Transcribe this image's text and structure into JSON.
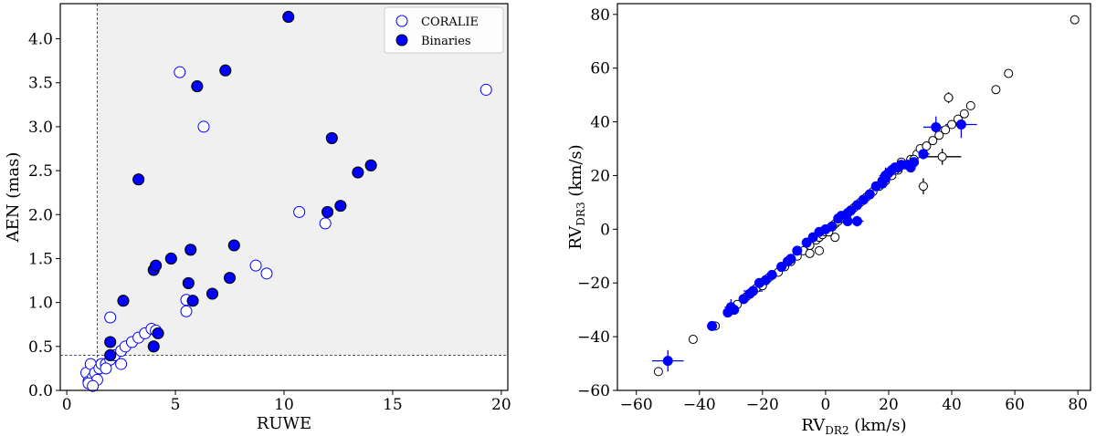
{
  "chart_data": [
    {
      "type": "scatter",
      "title": "",
      "xlabel": "RUWE",
      "ylabel": "AEN (mas)",
      "xlim": [
        -0.3,
        20.3
      ],
      "ylim": [
        0,
        4.4
      ],
      "xticks": [
        0,
        5,
        10,
        15,
        20
      ],
      "yticks": [
        0.0,
        0.5,
        1.0,
        1.5,
        2.0,
        2.5,
        3.0,
        3.5,
        4.0
      ],
      "shaded_region": {
        "x_min": 1.4,
        "y_min": 0.4,
        "color": "#f0f0f0"
      },
      "threshold_lines": {
        "x": 1.4,
        "y": 0.4
      },
      "legend_position": "top-right",
      "series": [
        {
          "name": "CORALIE",
          "marker": "open-circle",
          "color": "#0000ff",
          "points": [
            [
              0.9,
              0.2
            ],
            [
              1.0,
              0.1
            ],
            [
              1.1,
              0.3
            ],
            [
              1.2,
              0.15
            ],
            [
              1.3,
              0.2
            ],
            [
              1.4,
              0.12
            ],
            [
              1.5,
              0.25
            ],
            [
              1.6,
              0.3
            ],
            [
              1.0,
              0.08
            ],
            [
              1.2,
              0.05
            ],
            [
              1.8,
              0.3
            ],
            [
              2.0,
              0.35
            ],
            [
              2.2,
              0.4
            ],
            [
              2.5,
              0.45
            ],
            [
              2.7,
              0.5
            ],
            [
              3.0,
              0.55
            ],
            [
              3.3,
              0.6
            ],
            [
              3.6,
              0.65
            ],
            [
              3.9,
              0.7
            ],
            [
              4.1,
              0.68
            ],
            [
              2.0,
              0.83
            ],
            [
              2.5,
              0.3
            ],
            [
              1.8,
              0.25
            ],
            [
              5.2,
              3.62
            ],
            [
              6.3,
              3.0
            ],
            [
              5.5,
              1.03
            ],
            [
              5.5,
              0.9
            ],
            [
              8.7,
              1.42
            ],
            [
              9.2,
              1.33
            ],
            [
              10.7,
              2.03
            ],
            [
              11.9,
              1.9
            ],
            [
              19.3,
              3.42
            ]
          ]
        },
        {
          "name": "Binaries",
          "marker": "filled-circle",
          "color": "#0000ff",
          "points": [
            [
              2.0,
              0.55
            ],
            [
              2.0,
              0.4
            ],
            [
              2.6,
              1.02
            ],
            [
              3.3,
              2.4
            ],
            [
              4.0,
              1.37
            ],
            [
              4.1,
              1.42
            ],
            [
              4.0,
              0.5
            ],
            [
              4.2,
              0.65
            ],
            [
              4.8,
              1.5
            ],
            [
              5.6,
              1.22
            ],
            [
              5.7,
              1.6
            ],
            [
              5.8,
              1.02
            ],
            [
              6.0,
              3.46
            ],
            [
              6.7,
              1.1
            ],
            [
              7.3,
              3.64
            ],
            [
              7.5,
              1.28
            ],
            [
              7.7,
              1.65
            ],
            [
              10.2,
              4.25
            ],
            [
              12.0,
              2.03
            ],
            [
              12.2,
              2.87
            ],
            [
              12.6,
              2.1
            ],
            [
              13.4,
              2.48
            ],
            [
              14.0,
              2.56
            ]
          ]
        }
      ]
    },
    {
      "type": "scatter",
      "title": "",
      "xlabel_main": "RV",
      "xlabel_sub": "DR2",
      "xlabel_unit": " (km/s)",
      "ylabel_main": "RV",
      "ylabel_sub": "DR3",
      "ylabel_unit": " (km/s)",
      "xlim": [
        -66,
        84
      ],
      "ylim": [
        -60,
        84
      ],
      "xticks": [
        -60,
        -40,
        -20,
        0,
        20,
        40,
        60,
        80
      ],
      "yticks": [
        -60,
        -40,
        -20,
        0,
        20,
        40,
        60,
        80
      ],
      "series": [
        {
          "name": "",
          "marker": "open-circle",
          "color": "#000000",
          "points": [
            [
              -53,
              -53
            ],
            [
              -42,
              -41
            ],
            [
              -35,
              -36
            ],
            [
              -31,
              -31
            ],
            [
              -28,
              -28
            ],
            [
              -25,
              -25
            ],
            [
              -22,
              -22
            ],
            [
              -20,
              -21
            ],
            [
              -18,
              -18
            ],
            [
              -15,
              -16
            ],
            [
              -13,
              -14
            ],
            [
              -11,
              -12
            ],
            [
              -9,
              -10
            ],
            [
              -7,
              -8
            ],
            [
              -5,
              -6
            ],
            [
              -3,
              -4
            ],
            [
              -2,
              -3
            ],
            [
              -1,
              -2
            ],
            [
              0,
              -1
            ],
            [
              1,
              0
            ],
            [
              2,
              1
            ],
            [
              3,
              2
            ],
            [
              4,
              3
            ],
            [
              5,
              4
            ],
            [
              6,
              5
            ],
            [
              7,
              6
            ],
            [
              8,
              7
            ],
            [
              9,
              8
            ],
            [
              10,
              9
            ],
            [
              11,
              10
            ],
            [
              12,
              11
            ],
            [
              13,
              12
            ],
            [
              14,
              13
            ],
            [
              15,
              14
            ],
            [
              17,
              16
            ],
            [
              19,
              18
            ],
            [
              21,
              20
            ],
            [
              23,
              22
            ],
            [
              25,
              24
            ],
            [
              27,
              26
            ],
            [
              29,
              28
            ],
            [
              30,
              30
            ],
            [
              32,
              31
            ],
            [
              34,
              33
            ],
            [
              36,
              35
            ],
            [
              38,
              37
            ],
            [
              40,
              39
            ],
            [
              42,
              41
            ],
            [
              44,
              43
            ],
            [
              46,
              46
            ],
            [
              54,
              52
            ],
            [
              58,
              58
            ],
            [
              79,
              78
            ],
            [
              -2,
              -8
            ],
            [
              -5,
              -9
            ],
            [
              1,
              -1
            ],
            [
              3,
              -3
            ],
            [
              22,
              22
            ],
            [
              24,
              25
            ],
            [
              28,
              26
            ]
          ],
          "error_points": [
            {
              "x": 31,
              "y": 16,
              "xerr": 1.5,
              "yerr": 3
            },
            {
              "x": 37,
              "y": 27,
              "xerr": 6,
              "yerr": 3
            },
            {
              "x": 39,
              "y": 49,
              "xerr": 1.5,
              "yerr": 2
            }
          ]
        },
        {
          "name": "",
          "marker": "filled-circle",
          "color": "#0000ff",
          "points": [
            [
              -36,
              -36
            ],
            [
              -31,
              -31
            ],
            [
              -29,
              -30
            ],
            [
              -26,
              -26
            ],
            [
              -24,
              -24
            ],
            [
              -21,
              -20
            ],
            [
              -19,
              -19
            ],
            [
              -17,
              -17
            ],
            [
              -14,
              -14
            ],
            [
              -12,
              -12
            ],
            [
              -9,
              -8
            ],
            [
              -6,
              -5
            ],
            [
              -4,
              -3
            ],
            [
              -2,
              -1
            ],
            [
              0,
              0
            ],
            [
              2,
              1
            ],
            [
              4,
              4
            ],
            [
              5,
              5
            ],
            [
              7,
              6
            ],
            [
              8,
              7
            ],
            [
              10,
              9
            ],
            [
              12,
              11
            ],
            [
              14,
              13
            ],
            [
              16,
              16
            ],
            [
              18,
              18
            ],
            [
              19,
              19
            ],
            [
              20,
              21
            ],
            [
              21,
              22
            ],
            [
              22,
              23
            ],
            [
              23,
              23
            ],
            [
              24,
              24
            ],
            [
              26,
              24
            ],
            [
              27,
              23
            ],
            [
              28,
              25
            ]
          ],
          "error_points": [
            {
              "x": -50,
              "y": -49,
              "xerr": 5,
              "yerr": 4
            },
            {
              "x": -30,
              "y": -29,
              "xerr": 2,
              "yerr": 3
            },
            {
              "x": -23,
              "y": -23,
              "xerr": 3,
              "yerr": 2
            },
            {
              "x": -11,
              "y": -11,
              "xerr": 2,
              "yerr": 1.5
            },
            {
              "x": 7,
              "y": 3,
              "xerr": 5,
              "yerr": 1.5
            },
            {
              "x": 10,
              "y": 3,
              "xerr": 2,
              "yerr": 2
            },
            {
              "x": 18,
              "y": 17,
              "xerr": 2,
              "yerr": 2
            },
            {
              "x": 19,
              "y": 20,
              "xerr": 2,
              "yerr": 3
            },
            {
              "x": 31,
              "y": 28,
              "xerr": 2,
              "yerr": 2
            },
            {
              "x": 35,
              "y": 38,
              "xerr": 4,
              "yerr": 4
            },
            {
              "x": 43,
              "y": 39,
              "xerr": 5,
              "yerr": 5
            }
          ]
        }
      ]
    }
  ]
}
